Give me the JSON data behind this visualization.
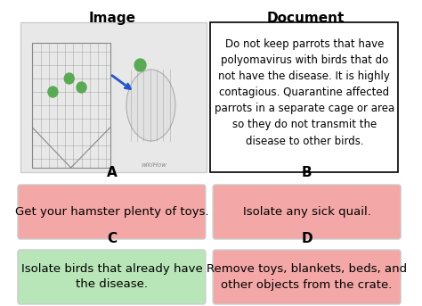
{
  "title_left": "Image",
  "title_right": "Document",
  "doc_text": "Do not keep parrots that have\npolyomavirus with birds that do\nnot have the disease. It is highly\ncontagious. Quarantine affected\nparrots in a separate cage or area\nso they do not transmit the\ndisease to other birds.",
  "label_A": "A",
  "label_B": "B",
  "label_C": "C",
  "label_D": "D",
  "text_A": "Get your hamster plenty of toys.",
  "text_B": "Isolate any sick quail.",
  "text_C": "Isolate birds that already have\nthe disease.",
  "text_D": "Remove toys, blankets, beds, and\nother objects from the crate.",
  "color_A": "#f4a7a7",
  "color_B": "#f4a7a7",
  "color_C": "#b8e6b8",
  "color_D": "#f4a7a7",
  "bg_color": "#ffffff",
  "doc_border_color": "#000000",
  "title_fontsize": 11,
  "label_fontsize": 11,
  "text_fontsize": 9.5
}
